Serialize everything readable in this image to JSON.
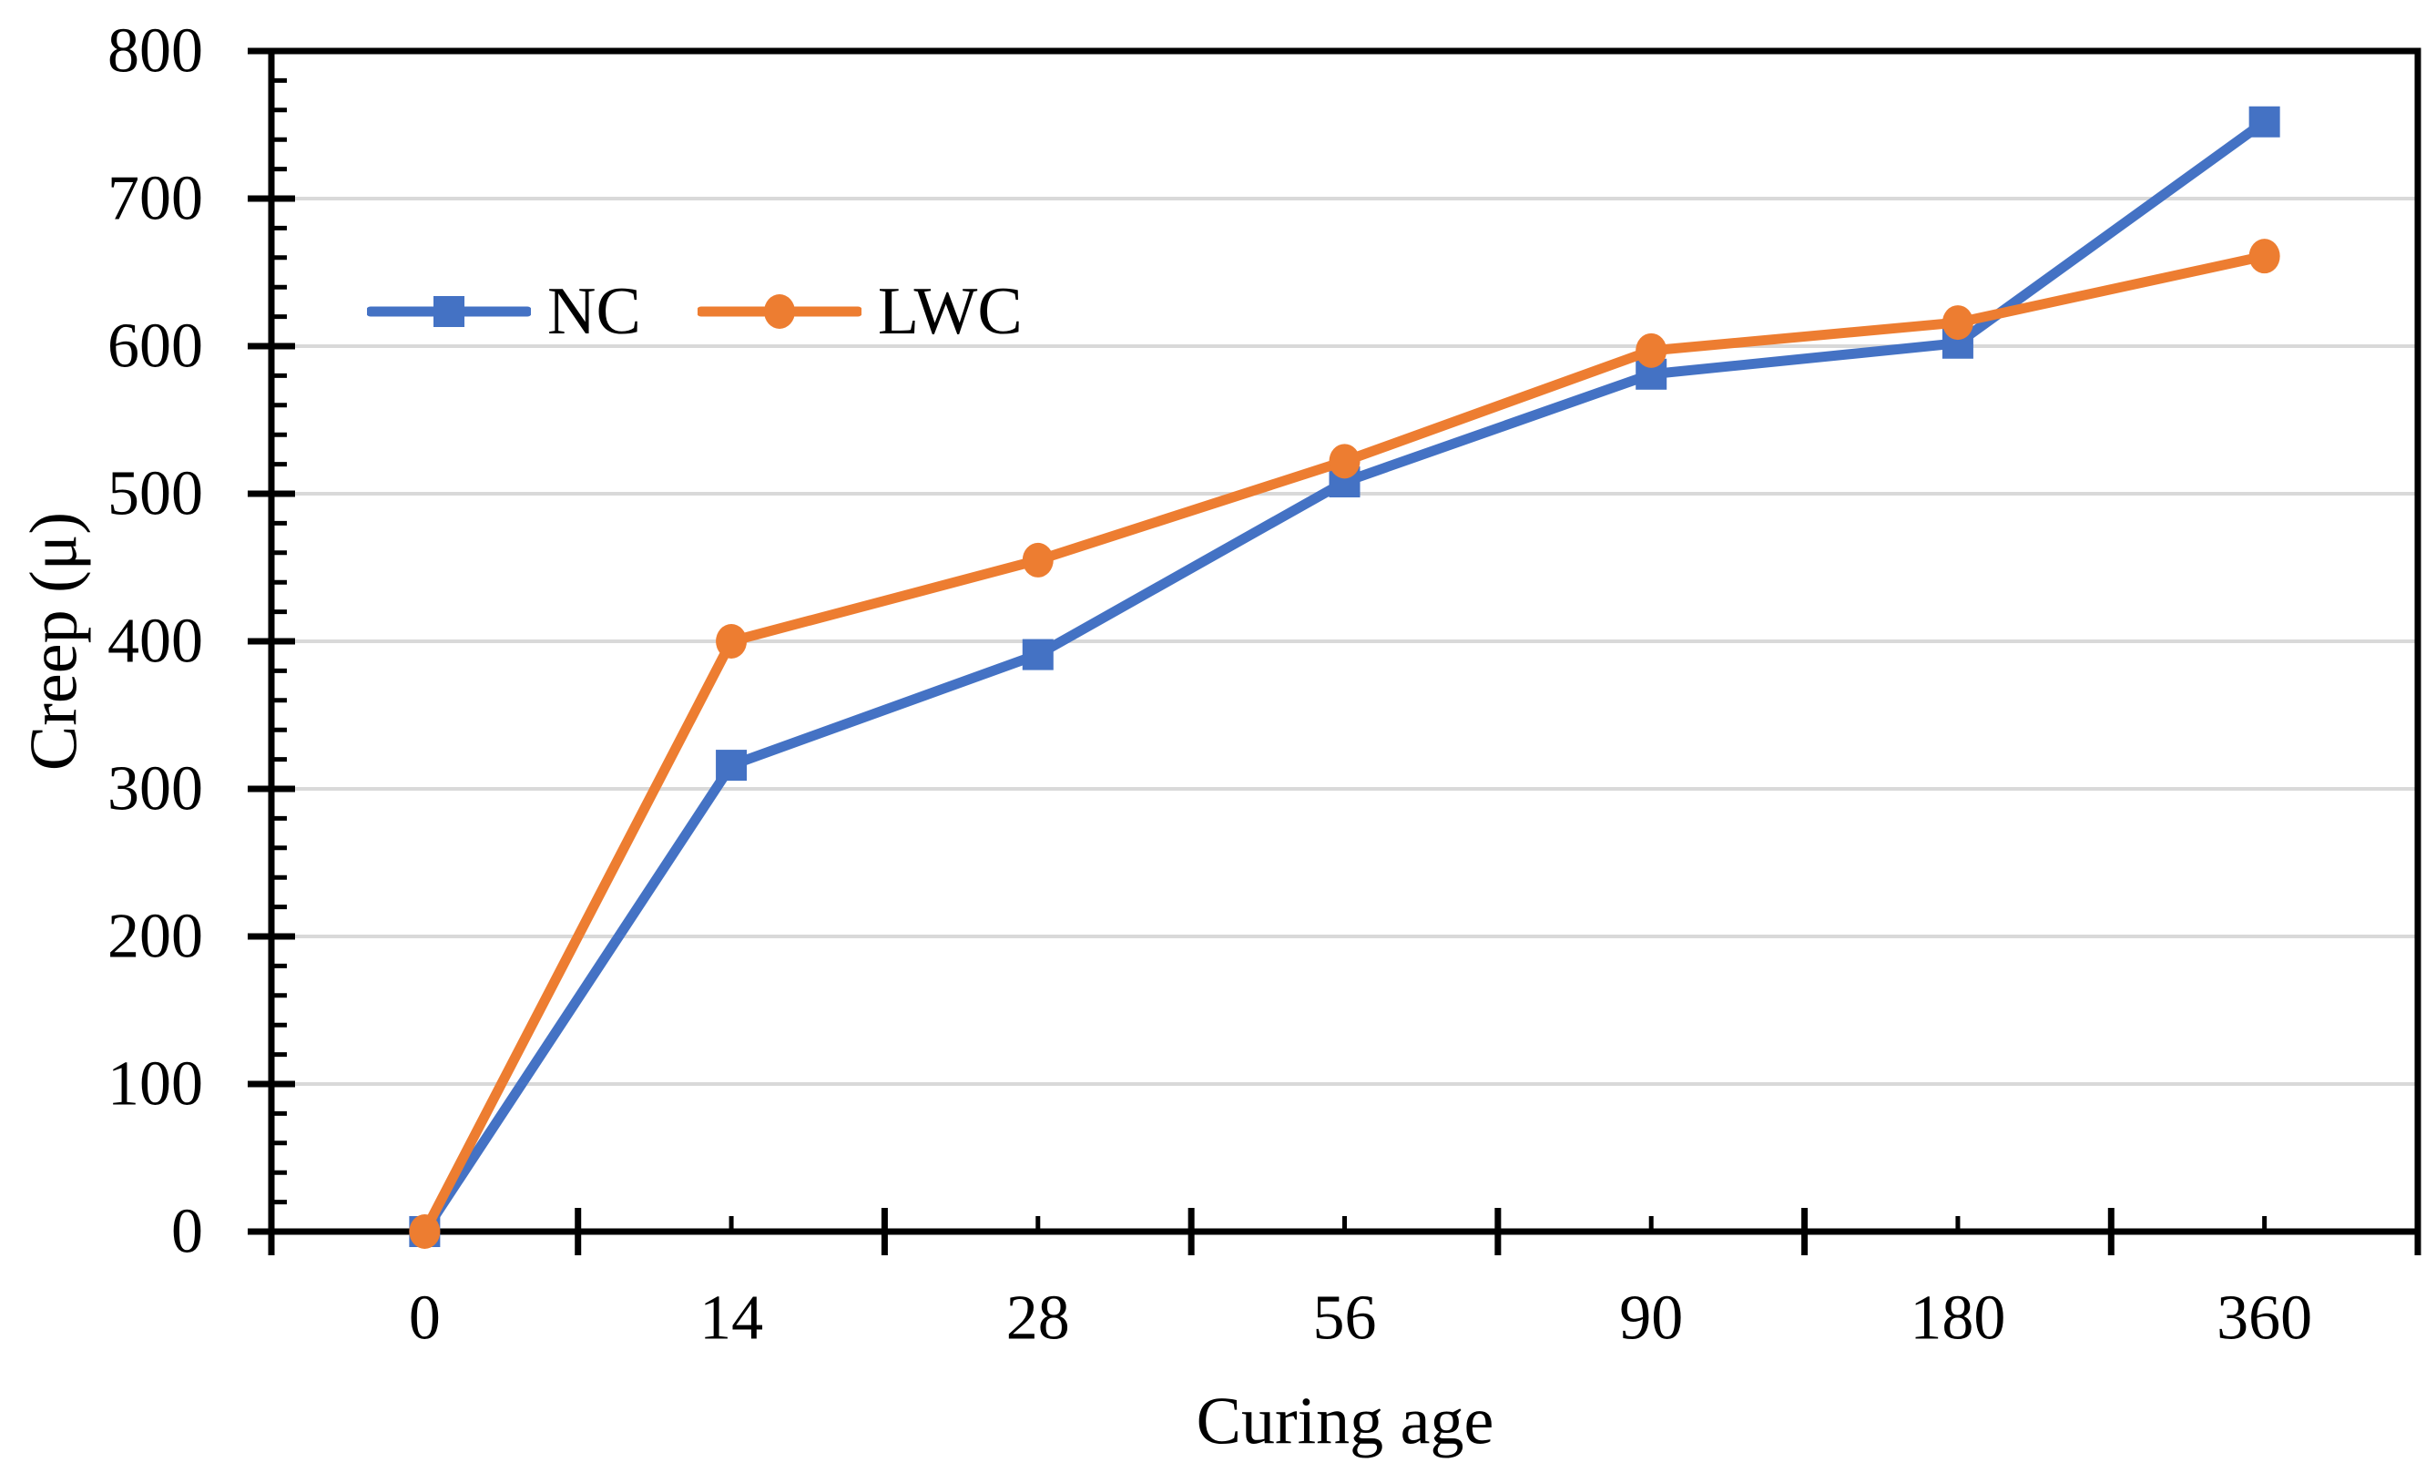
{
  "chart_data": {
    "type": "line",
    "title": "",
    "xlabel": "Curing age",
    "ylabel": "Creep (μ)",
    "categories": [
      "0",
      "14",
      "28",
      "56",
      "90",
      "180",
      "360"
    ],
    "series": [
      {
        "name": "NC",
        "color": "#4472C4",
        "marker": "square",
        "values": [
          0,
          316,
          391,
          508,
          581,
          602,
          752
        ]
      },
      {
        "name": "LWC",
        "color": "#ED7D31",
        "marker": "circle",
        "values": [
          0,
          400,
          455,
          522,
          597,
          616,
          661
        ]
      }
    ],
    "ylim": [
      0,
      800
    ],
    "ytick_step": 100,
    "yminor_step": 20,
    "yticks": [
      0,
      100,
      200,
      300,
      400,
      500,
      600,
      700,
      800
    ],
    "grid": "horizontal",
    "gridline_color": "#D9D9D9",
    "axis_color": "#000000",
    "legend_position": "inside-top-left",
    "x_axis_style": "category axis, major ticks cross at band boundaries, minor ticks inside at band centers"
  }
}
